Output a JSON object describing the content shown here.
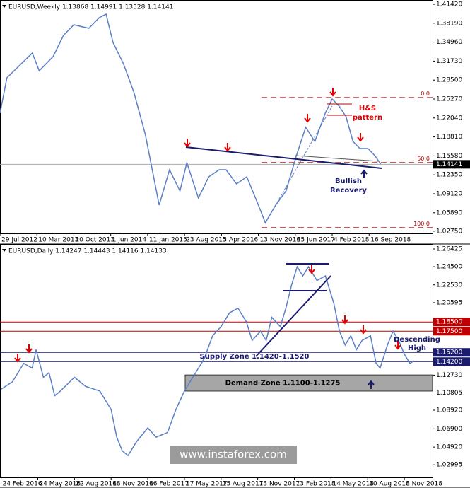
{
  "chart_data": [
    {
      "type": "line",
      "title": "EURUSD,Weekly 1.13868 1.14991 1.13528 1.14141",
      "color": "#5b7fc7",
      "x": [
        0,
        6,
        28,
        34,
        46,
        55,
        64,
        77,
        86,
        92,
        98,
        107,
        116,
        126,
        132,
        138,
        147,
        156,
        162,
        172,
        181,
        190,
        196,
        205,
        214,
        224,
        230,
        239,
        248,
        257,
        265,
        273,
        282,
        288,
        294,
        300,
        306,
        312,
        319,
        325,
        330
      ],
      "values": [
        1.2286,
        1.2889,
        1.331,
        1.3009,
        1.325,
        1.3612,
        1.3793,
        1.3732,
        1.3913,
        1.3973,
        1.3491,
        1.313,
        1.2648,
        1.1924,
        1.1322,
        1.0719,
        1.1322,
        1.096,
        1.1442,
        1.084,
        1.1201,
        1.1322,
        1.1322,
        1.1081,
        1.1201,
        1.0719,
        1.0418,
        1.0719,
        1.096,
        1.1563,
        1.2045,
        1.1804,
        1.2286,
        1.2527,
        1.2407,
        1.2226,
        1.1804,
        1.1683,
        1.1683,
        1.1563,
        1.1418
      ],
      "xlim": [
        0,
        375
      ],
      "xticks": [
        {
          "value": 0,
          "label": "29 Jul 2012"
        },
        {
          "value": 32,
          "label": "10 Mar 2013"
        },
        {
          "value": 64,
          "label": "20 Oct 2013"
        },
        {
          "value": 96,
          "label": "1 Jun 2014"
        },
        {
          "value": 128,
          "label": "11 Jan 2015"
        },
        {
          "value": 160,
          "label": "23 Aug 2015"
        },
        {
          "value": 192,
          "label": "3 Apr 2016"
        },
        {
          "value": 224,
          "label": "13 Nov 2016"
        },
        {
          "value": 256,
          "label": "25 Jun 2017"
        },
        {
          "value": 288,
          "label": "4 Feb 2018"
        },
        {
          "value": 320,
          "label": "16 Sep 2018"
        }
      ],
      "ylim": [
        1.0237,
        1.41902
      ],
      "yticks": [
        {
          "value": 1.4142,
          "label": "1.41420"
        },
        {
          "value": 1.3819,
          "label": "1.38190"
        },
        {
          "value": 1.3496,
          "label": "1.34960"
        },
        {
          "value": 1.3173,
          "label": "1.31730"
        },
        {
          "value": 1.285,
          "label": "1.28500"
        },
        {
          "value": 1.2527,
          "label": "1.25270"
        },
        {
          "value": 1.2204,
          "label": "1.22040"
        },
        {
          "value": 1.1881,
          "label": "1.18810"
        },
        {
          "value": 1.1558,
          "label": "1.15580"
        },
        {
          "value": 1.1235,
          "label": "1.12350"
        },
        {
          "value": 1.0912,
          "label": "1.09120"
        },
        {
          "value": 1.0589,
          "label": "1.05890"
        },
        {
          "value": 1.0275,
          "label": "1.02750"
        }
      ],
      "fib_levels": [
        {
          "value": 1.2555,
          "label": "0.0"
        },
        {
          "value": 1.1448,
          "label": "50.0"
        },
        {
          "value": 1.034,
          "label": "100.0"
        }
      ],
      "price_levels": [
        {
          "value": 1.14141,
          "color": "#000000"
        }
      ],
      "annotations": [
        "H&S",
        "pattern",
        "Bullish",
        "Recovery"
      ]
    },
    {
      "type": "line",
      "title": "EURUSD,Daily 1.14247 1.14443 1.14116 1.14133",
      "color": "#5b7fc7",
      "x": [
        0,
        20,
        40,
        55,
        62,
        75,
        85,
        95,
        105,
        130,
        150,
        175,
        195,
        205,
        215,
        225,
        240,
        260,
        275,
        295,
        310,
        325,
        345,
        360,
        375,
        390,
        405,
        420,
        435,
        445,
        460,
        470,
        480,
        495,
        505,
        515,
        525,
        535,
        545,
        560,
        575,
        590,
        600,
        610,
        620,
        630,
        640,
        655,
        665,
        672,
        685,
        695,
        705,
        715,
        725,
        732
      ],
      "values": [
        1.112,
        1.12,
        1.14,
        1.135,
        1.155,
        1.125,
        1.13,
        1.105,
        1.11,
        1.125,
        1.115,
        1.11,
        1.09,
        1.06,
        1.045,
        1.04,
        1.055,
        1.07,
        1.06,
        1.065,
        1.09,
        1.11,
        1.13,
        1.145,
        1.17,
        1.18,
        1.195,
        1.2,
        1.185,
        1.165,
        1.175,
        1.165,
        1.19,
        1.18,
        1.2,
        1.225,
        1.245,
        1.235,
        1.245,
        1.23,
        1.235,
        1.205,
        1.175,
        1.16,
        1.17,
        1.155,
        1.165,
        1.17,
        1.14,
        1.135,
        1.16,
        1.175,
        1.165,
        1.15,
        1.14,
        1.143
      ],
      "xlim": [
        -2,
        765
      ],
      "xticks": [
        {
          "value": 0,
          "label": "24 Feb 2016"
        },
        {
          "value": 65,
          "label": "24 May 2016"
        },
        {
          "value": 130,
          "label": "22 Aug 2016"
        },
        {
          "value": 195,
          "label": "18 Nov 2016"
        },
        {
          "value": 260,
          "label": "16 Feb 2017"
        },
        {
          "value": 325,
          "label": "17 May 2017"
        },
        {
          "value": 390,
          "label": "15 Aug 2017"
        },
        {
          "value": 455,
          "label": "13 Nov 2017"
        },
        {
          "value": 520,
          "label": "13 Feb 2018"
        },
        {
          "value": 585,
          "label": "14 May 2018"
        },
        {
          "value": 650,
          "label": "10 Aug 2018"
        },
        {
          "value": 715,
          "label": "8 Nov 2018"
        }
      ],
      "ylim": [
        1.0163,
        1.2681
      ],
      "yticks": [
        {
          "value": 1.26425,
          "label": "1.26425"
        },
        {
          "value": 1.245,
          "label": "1.24500"
        },
        {
          "value": 1.2253,
          "label": "1.22530"
        },
        {
          "value": 1.20595,
          "label": "1.20595"
        },
        {
          "value": 1.1273,
          "label": "1.12730"
        },
        {
          "value": 1.10805,
          "label": "1.10805"
        },
        {
          "value": 1.0892,
          "label": "1.08920"
        },
        {
          "value": 1.069,
          "label": "1.06900"
        },
        {
          "value": 1.0492,
          "label": "1.04920"
        },
        {
          "value": 1.02995,
          "label": "1.02995"
        }
      ],
      "price_levels": [
        {
          "value": 1.185,
          "label": "1.18500",
          "color": "#c00000"
        },
        {
          "value": 1.175,
          "label": "1.17500",
          "color": "#c00000"
        },
        {
          "value": 1.152,
          "label": "1.15200",
          "color": "#1a1a6e"
        },
        {
          "value": 1.142,
          "label": "1.14200",
          "color": "#1a1a6e"
        }
      ],
      "zones": [
        {
          "low": 1.11,
          "high": 1.1275,
          "label": "Demand Zone 1.1100-1.1275"
        }
      ],
      "annotations": [
        "Supply Zone 1.1420-1.1520",
        "Descending",
        "High"
      ]
    }
  ],
  "watermark": "www.instaforex.com"
}
